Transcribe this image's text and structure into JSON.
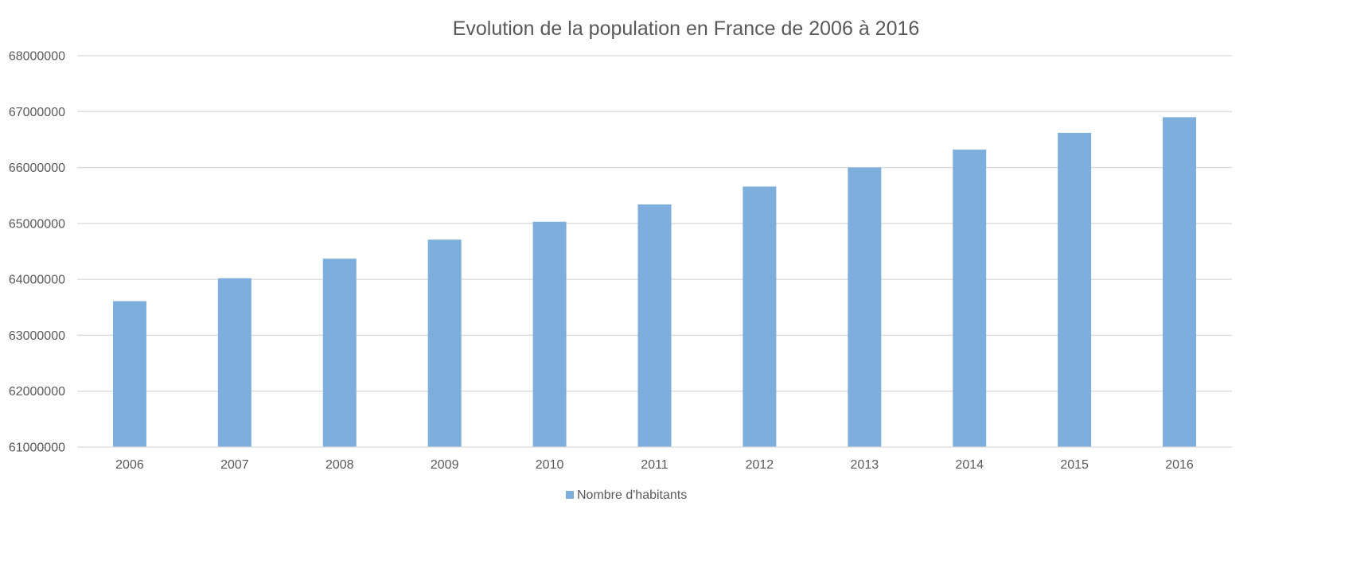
{
  "chart_data": {
    "type": "bar",
    "title": "Evolution de la population en France de 2006 à 2016",
    "xlabel": "",
    "ylabel": "",
    "categories": [
      "2006",
      "2007",
      "2008",
      "2009",
      "2010",
      "2011",
      "2012",
      "2013",
      "2014",
      "2015",
      "2016"
    ],
    "series": [
      {
        "name": "Nombre d'habitants",
        "color": "#7eaedc",
        "values": [
          63610000,
          64020000,
          64370000,
          64710000,
          65030000,
          65340000,
          65660000,
          66000000,
          66320000,
          66620000,
          66900000
        ]
      }
    ],
    "ylim": [
      61000000,
      68000000
    ],
    "yticks": [
      "61000000",
      "62000000",
      "63000000",
      "64000000",
      "65000000",
      "66000000",
      "67000000",
      "68000000"
    ],
    "grid": true,
    "legend_position": "bottom"
  }
}
